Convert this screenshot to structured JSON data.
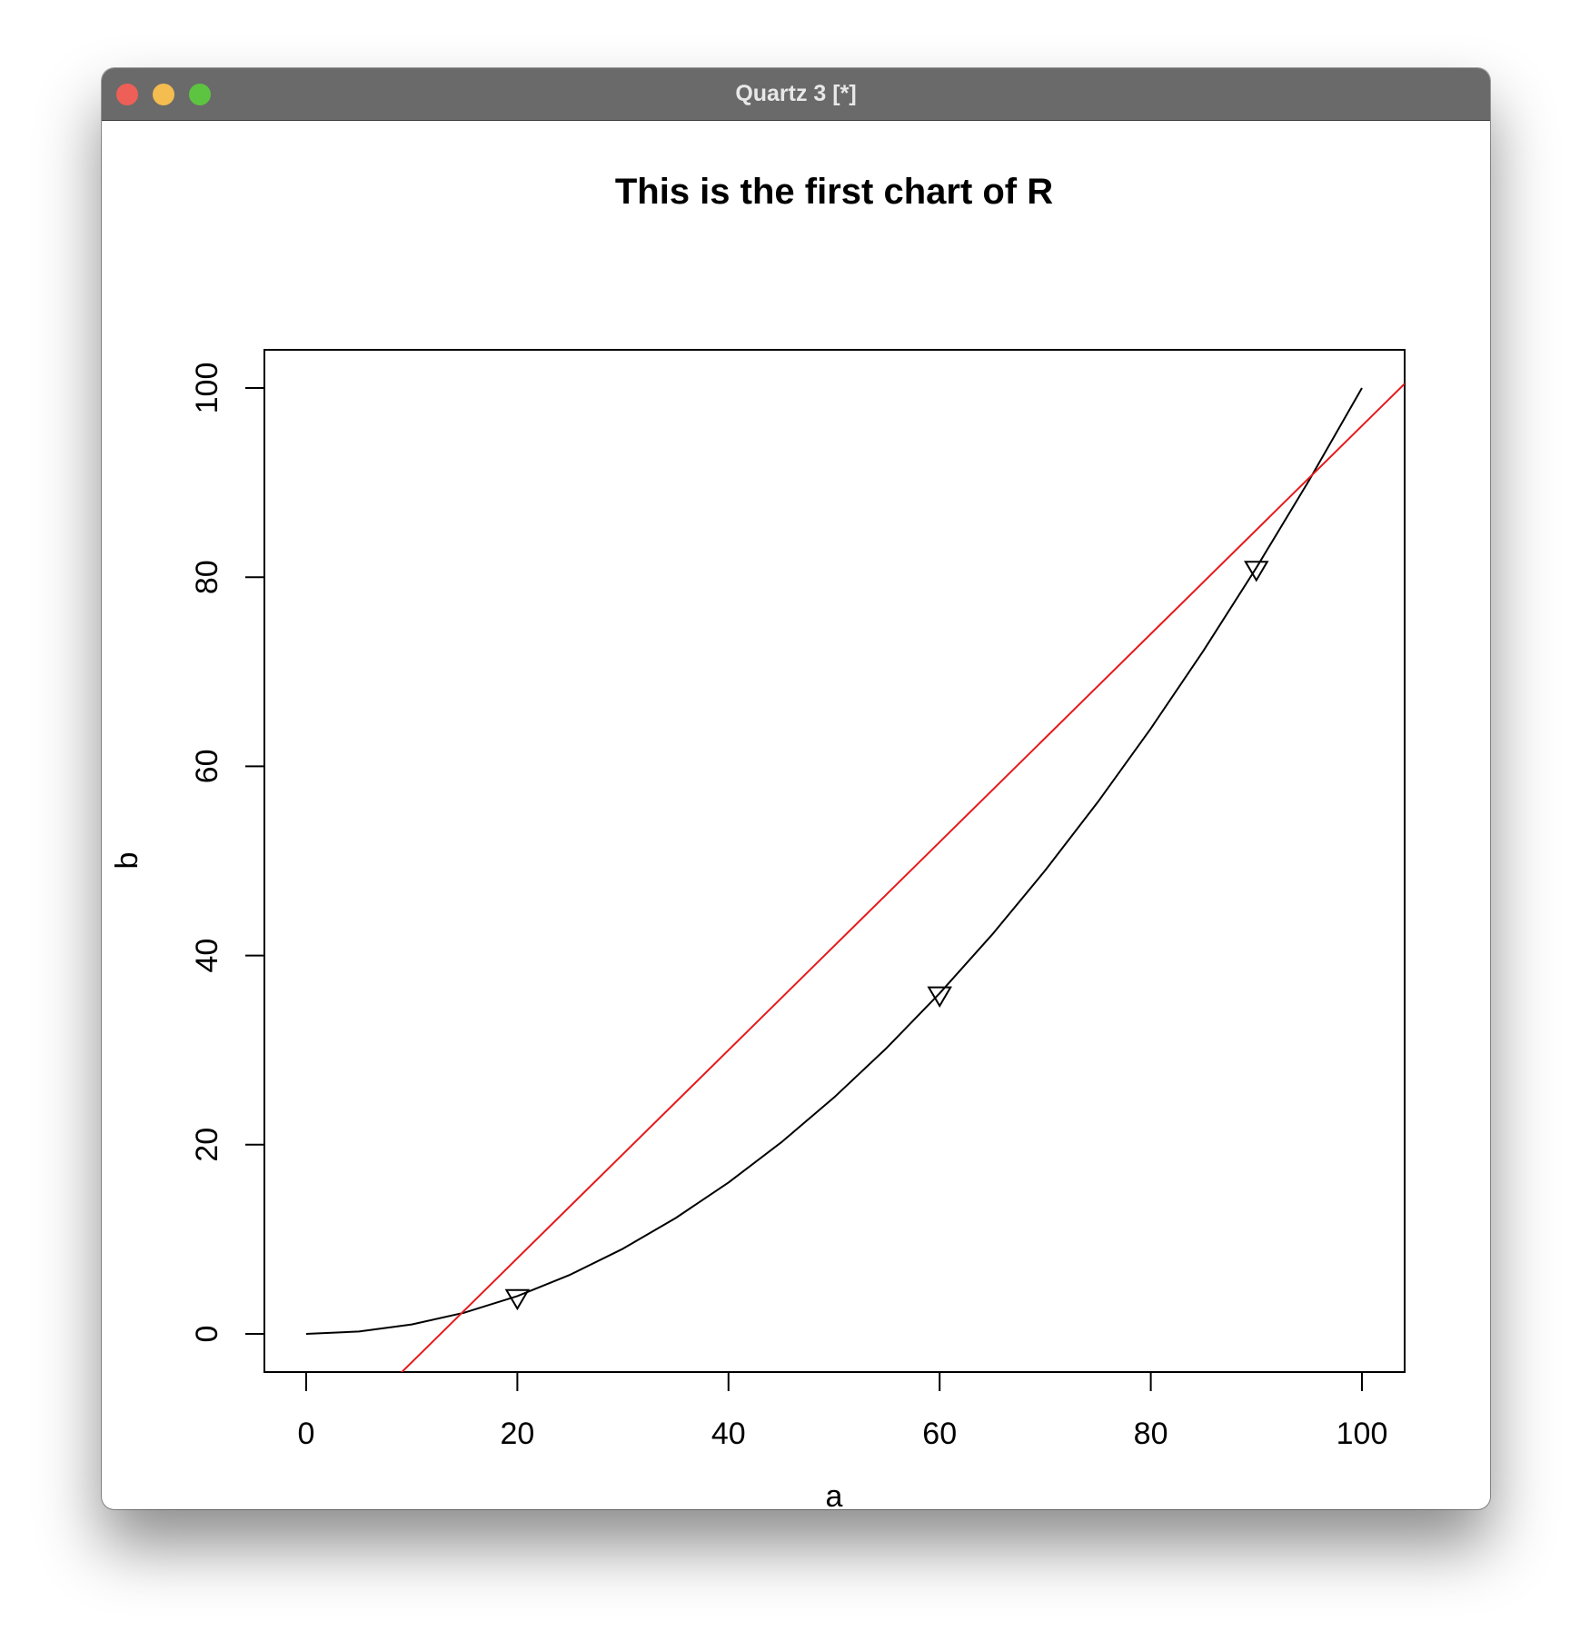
{
  "window": {
    "title": "Quartz 3 [*]",
    "buttons": [
      "close",
      "minimize",
      "zoom"
    ]
  },
  "chart_data": {
    "type": "line",
    "title": "This is the first chart of R",
    "xlabel": "a",
    "ylabel": "b",
    "xlim": [
      0,
      100
    ],
    "ylim": [
      0,
      100
    ],
    "x_ticks": [
      0,
      20,
      40,
      60,
      80,
      100
    ],
    "y_ticks": [
      0,
      20,
      40,
      60,
      80,
      100
    ],
    "grid": false,
    "series": [
      {
        "type": "line",
        "color": "#000000",
        "x": [
          0,
          5,
          10,
          15,
          20,
          25,
          30,
          35,
          40,
          45,
          50,
          55,
          60,
          65,
          70,
          75,
          80,
          85,
          90,
          95,
          100
        ],
        "y": [
          0,
          0.25,
          1,
          2.25,
          4,
          6.25,
          9,
          12.25,
          16,
          20.25,
          25,
          30.25,
          36,
          42.25,
          49,
          56.25,
          64,
          72.25,
          81,
          90.25,
          100
        ]
      },
      {
        "type": "points",
        "marker": "triangle-down",
        "color": "#000000",
        "x": [
          20,
          60,
          90
        ],
        "y": [
          4,
          36,
          81
        ]
      },
      {
        "type": "abline",
        "color": "#e41a1c",
        "intercept": -14,
        "slope": 1.1
      }
    ]
  }
}
